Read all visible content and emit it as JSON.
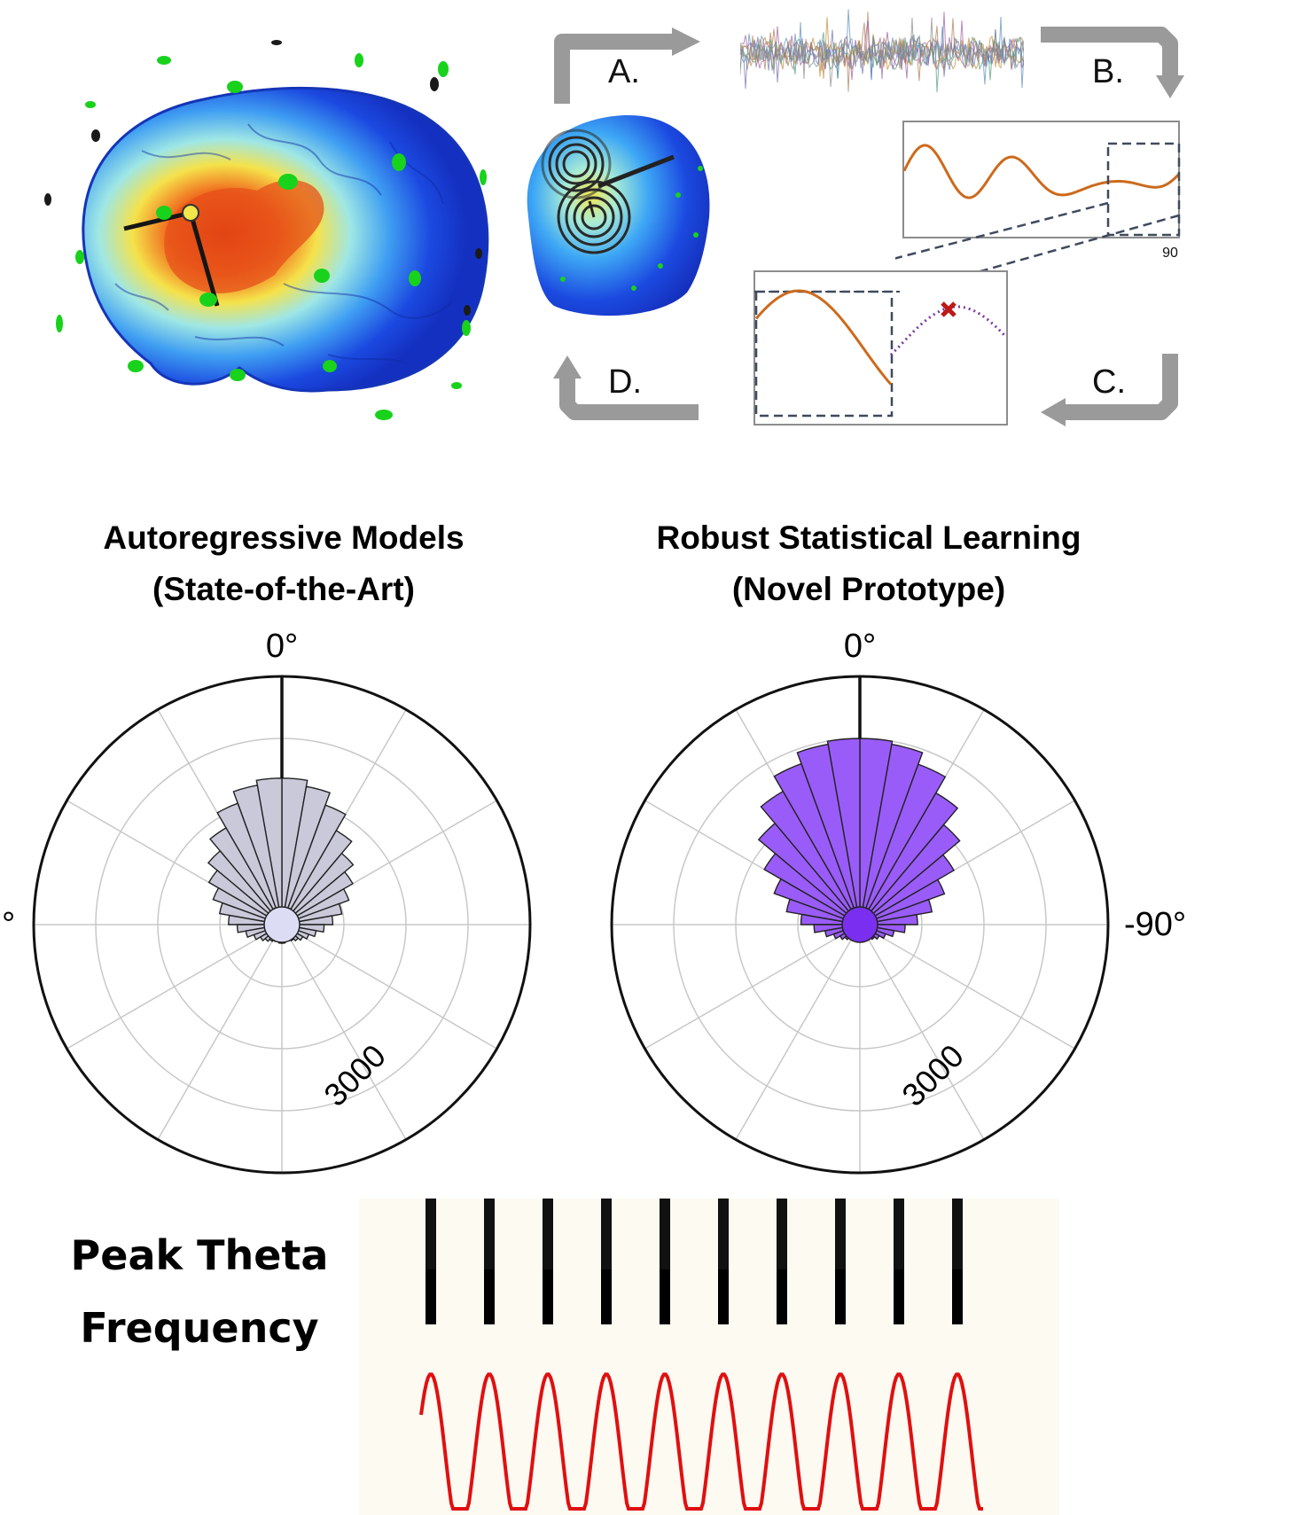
{
  "workflow": {
    "steps": [
      "A.",
      "B.",
      "C.",
      "D."
    ],
    "zoom_axis_label": "90"
  },
  "roses": [
    {
      "title_line1": "Autoregressive Models",
      "title_line2": "(State-of-the-Art)",
      "top_label": "0°",
      "side_label": "°",
      "radial_label": "3000",
      "fill": "#c9c9da",
      "center_fill": "#dcdcf4"
    },
    {
      "title_line1": "Robust Statistical Learning",
      "title_line2": "(Novel Prototype)",
      "top_label": "0°",
      "side_label": "-90°",
      "radial_label": "3000",
      "fill": "#9a5cf8",
      "center_fill": "#7a2ff0"
    }
  ],
  "chart_data": [
    {
      "type": "polar-histogram",
      "title": "Autoregressive Models (State-of-the-Art)",
      "theta_zero": "top",
      "r_tick": 3000,
      "r_rings": [
        1000,
        2000,
        3000,
        4000
      ],
      "r_max": 4000,
      "bins_per_side": 18,
      "right_values": [
        2360,
        2260,
        2050,
        1750,
        1500,
        1320,
        1150,
        980,
        820,
        680,
        560,
        460,
        390,
        340,
        300,
        280,
        280,
        300
      ],
      "left_values": [
        2360,
        2280,
        2080,
        1800,
        1550,
        1360,
        1180,
        1020,
        860,
        720,
        590,
        480,
        400,
        350,
        310,
        290,
        285,
        300
      ]
    },
    {
      "type": "polar-histogram",
      "title": "Robust Statistical Learning (Novel Prototype)",
      "theta_zero": "top",
      "r_tick": 3000,
      "r_rings": [
        1000,
        2000,
        3000,
        4000
      ],
      "r_max": 4000,
      "bins_per_side": 18,
      "right_values": [
        3000,
        2950,
        2750,
        2450,
        2100,
        1750,
        1450,
        1180,
        930,
        730,
        560,
        440,
        360,
        310,
        275,
        260,
        260,
        270
      ],
      "left_values": [
        3000,
        2950,
        2760,
        2480,
        2130,
        1780,
        1470,
        1200,
        950,
        740,
        570,
        450,
        370,
        315,
        280,
        262,
        260,
        270
      ]
    }
  ],
  "peak_theta": {
    "label_line1": "Peak Theta",
    "label_line2": "Frequency",
    "cycles": 10
  }
}
